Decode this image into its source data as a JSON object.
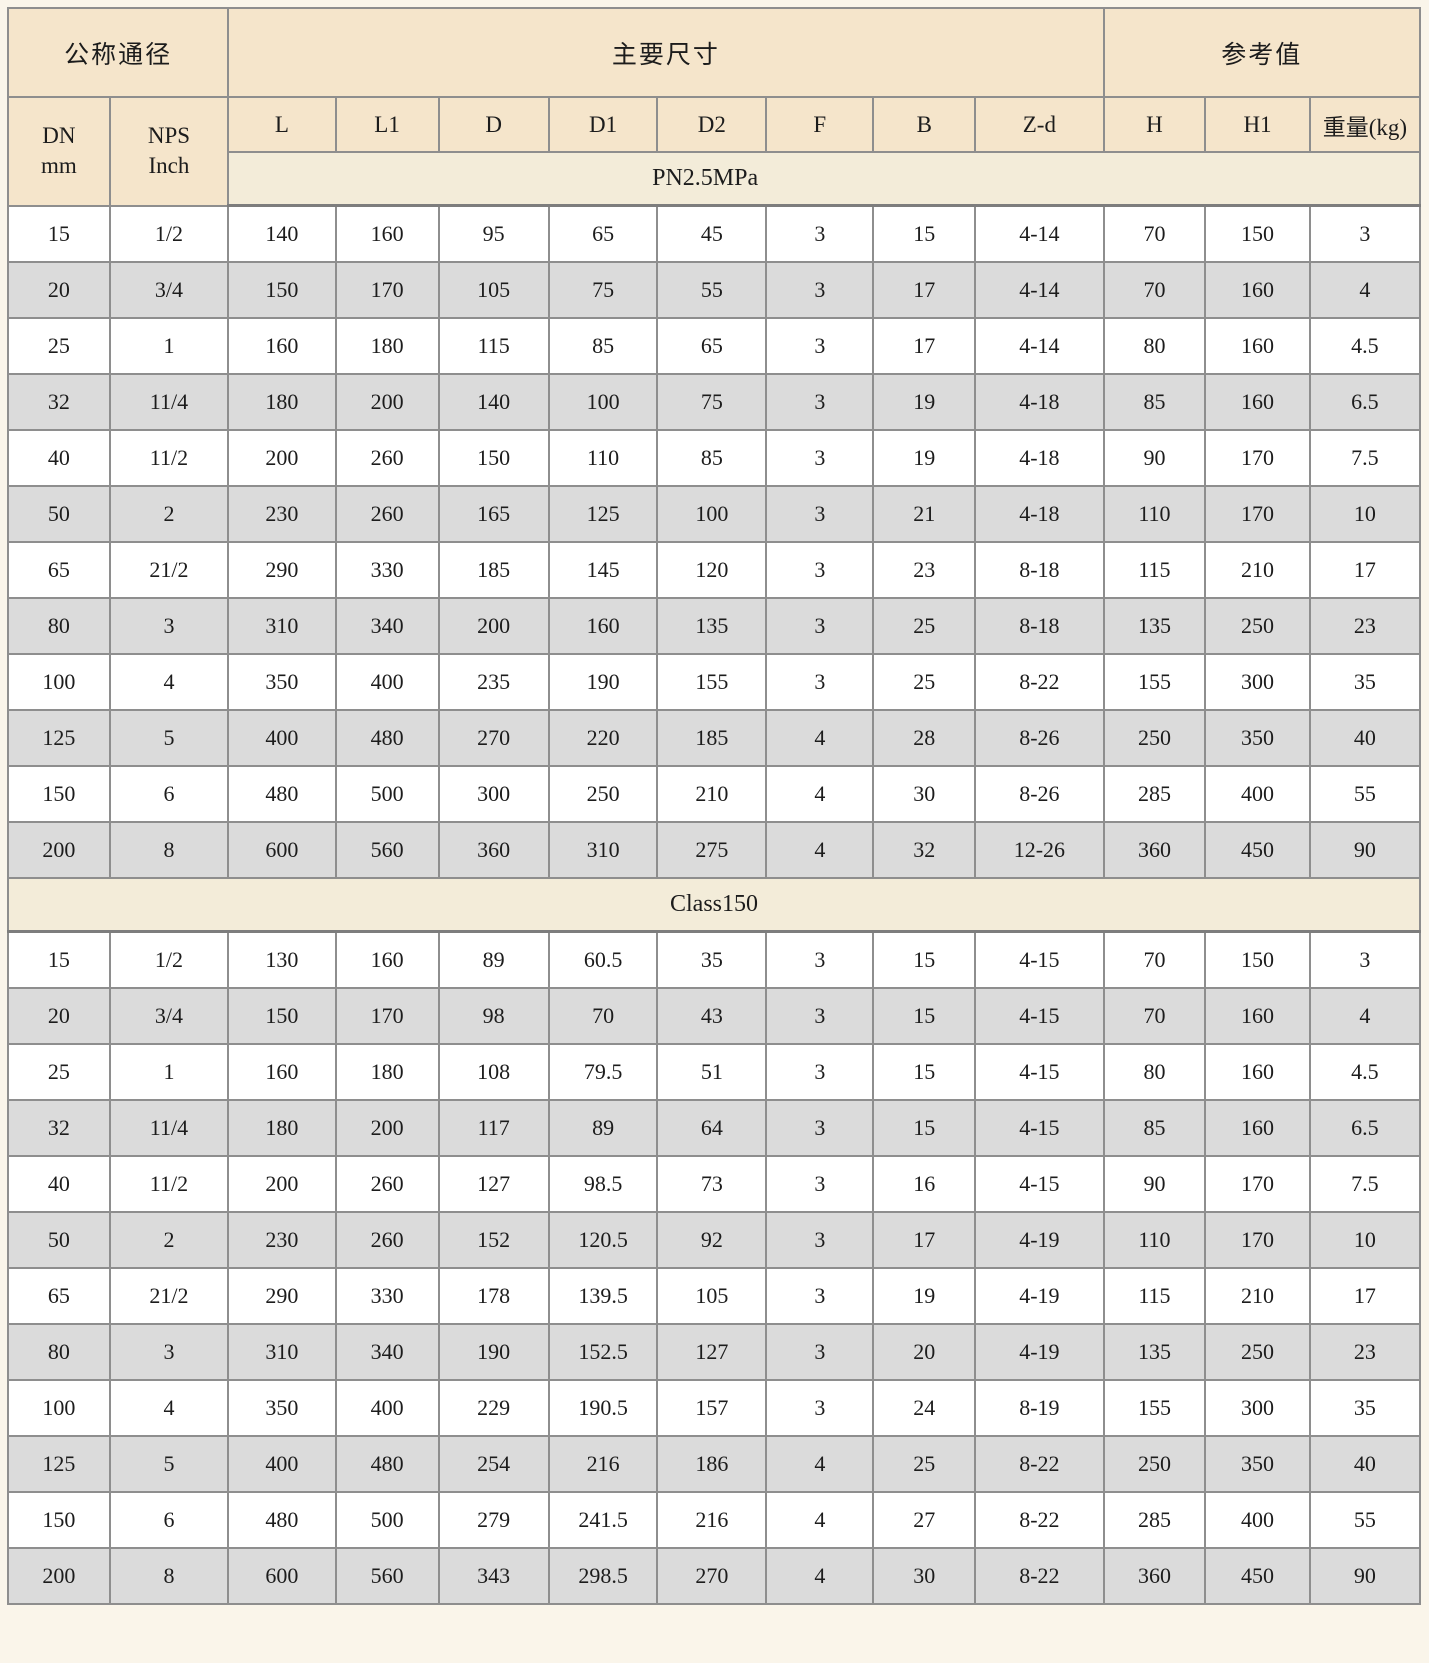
{
  "table": {
    "header": {
      "groups": [
        {
          "label": "公称通径",
          "span": 2
        },
        {
          "label": "主要尺寸",
          "span": 8
        },
        {
          "label": "参考值",
          "span": 3
        }
      ],
      "dn_label": "DN\nmm",
      "nps_label": "NPS\nInch",
      "columns": [
        "L",
        "L1",
        "D",
        "D1",
        "D2",
        "F",
        "B",
        "Z-d",
        "H",
        "H1",
        "重量(kg)"
      ]
    },
    "sections": [
      {
        "band": "PN2.5MPa",
        "rows": [
          [
            "15",
            "1/2",
            "140",
            "160",
            "95",
            "65",
            "45",
            "3",
            "15",
            "4-14",
            "70",
            "150",
            "3"
          ],
          [
            "20",
            "3/4",
            "150",
            "170",
            "105",
            "75",
            "55",
            "3",
            "17",
            "4-14",
            "70",
            "160",
            "4"
          ],
          [
            "25",
            "1",
            "160",
            "180",
            "115",
            "85",
            "65",
            "3",
            "17",
            "4-14",
            "80",
            "160",
            "4.5"
          ],
          [
            "32",
            "11/4",
            "180",
            "200",
            "140",
            "100",
            "75",
            "3",
            "19",
            "4-18",
            "85",
            "160",
            "6.5"
          ],
          [
            "40",
            "11/2",
            "200",
            "260",
            "150",
            "110",
            "85",
            "3",
            "19",
            "4-18",
            "90",
            "170",
            "7.5"
          ],
          [
            "50",
            "2",
            "230",
            "260",
            "165",
            "125",
            "100",
            "3",
            "21",
            "4-18",
            "110",
            "170",
            "10"
          ],
          [
            "65",
            "21/2",
            "290",
            "330",
            "185",
            "145",
            "120",
            "3",
            "23",
            "8-18",
            "115",
            "210",
            "17"
          ],
          [
            "80",
            "3",
            "310",
            "340",
            "200",
            "160",
            "135",
            "3",
            "25",
            "8-18",
            "135",
            "250",
            "23"
          ],
          [
            "100",
            "4",
            "350",
            "400",
            "235",
            "190",
            "155",
            "3",
            "25",
            "8-22",
            "155",
            "300",
            "35"
          ],
          [
            "125",
            "5",
            "400",
            "480",
            "270",
            "220",
            "185",
            "4",
            "28",
            "8-26",
            "250",
            "350",
            "40"
          ],
          [
            "150",
            "6",
            "480",
            "500",
            "300",
            "250",
            "210",
            "4",
            "30",
            "8-26",
            "285",
            "400",
            "55"
          ],
          [
            "200",
            "8",
            "600",
            "560",
            "360",
            "310",
            "275",
            "4",
            "32",
            "12-26",
            "360",
            "450",
            "90"
          ]
        ]
      },
      {
        "band": "Class150",
        "rows": [
          [
            "15",
            "1/2",
            "130",
            "160",
            "89",
            "60.5",
            "35",
            "3",
            "15",
            "4-15",
            "70",
            "150",
            "3"
          ],
          [
            "20",
            "3/4",
            "150",
            "170",
            "98",
            "70",
            "43",
            "3",
            "15",
            "4-15",
            "70",
            "160",
            "4"
          ],
          [
            "25",
            "1",
            "160",
            "180",
            "108",
            "79.5",
            "51",
            "3",
            "15",
            "4-15",
            "80",
            "160",
            "4.5"
          ],
          [
            "32",
            "11/4",
            "180",
            "200",
            "117",
            "89",
            "64",
            "3",
            "15",
            "4-15",
            "85",
            "160",
            "6.5"
          ],
          [
            "40",
            "11/2",
            "200",
            "260",
            "127",
            "98.5",
            "73",
            "3",
            "16",
            "4-15",
            "90",
            "170",
            "7.5"
          ],
          [
            "50",
            "2",
            "230",
            "260",
            "152",
            "120.5",
            "92",
            "3",
            "17",
            "4-19",
            "110",
            "170",
            "10"
          ],
          [
            "65",
            "21/2",
            "290",
            "330",
            "178",
            "139.5",
            "105",
            "3",
            "19",
            "4-19",
            "115",
            "210",
            "17"
          ],
          [
            "80",
            "3",
            "310",
            "340",
            "190",
            "152.5",
            "127",
            "3",
            "20",
            "4-19",
            "135",
            "250",
            "23"
          ],
          [
            "100",
            "4",
            "350",
            "400",
            "229",
            "190.5",
            "157",
            "3",
            "24",
            "8-19",
            "155",
            "300",
            "35"
          ],
          [
            "125",
            "5",
            "400",
            "480",
            "254",
            "216",
            "186",
            "4",
            "25",
            "8-22",
            "250",
            "350",
            "40"
          ],
          [
            "150",
            "6",
            "480",
            "500",
            "279",
            "241.5",
            "216",
            "4",
            "27",
            "8-22",
            "285",
            "400",
            "55"
          ],
          [
            "200",
            "8",
            "600",
            "560",
            "343",
            "298.5",
            "270",
            "4",
            "30",
            "8-22",
            "360",
            "450",
            "90"
          ]
        ]
      }
    ]
  },
  "colors": {
    "header_bg": "#f5e5cb",
    "band_bg": "#f3ecd9",
    "row_bg": "#ffffff",
    "row_alt_bg": "#dbdbdb",
    "border": "#8e8e8e",
    "text": "#1c1c1c"
  }
}
